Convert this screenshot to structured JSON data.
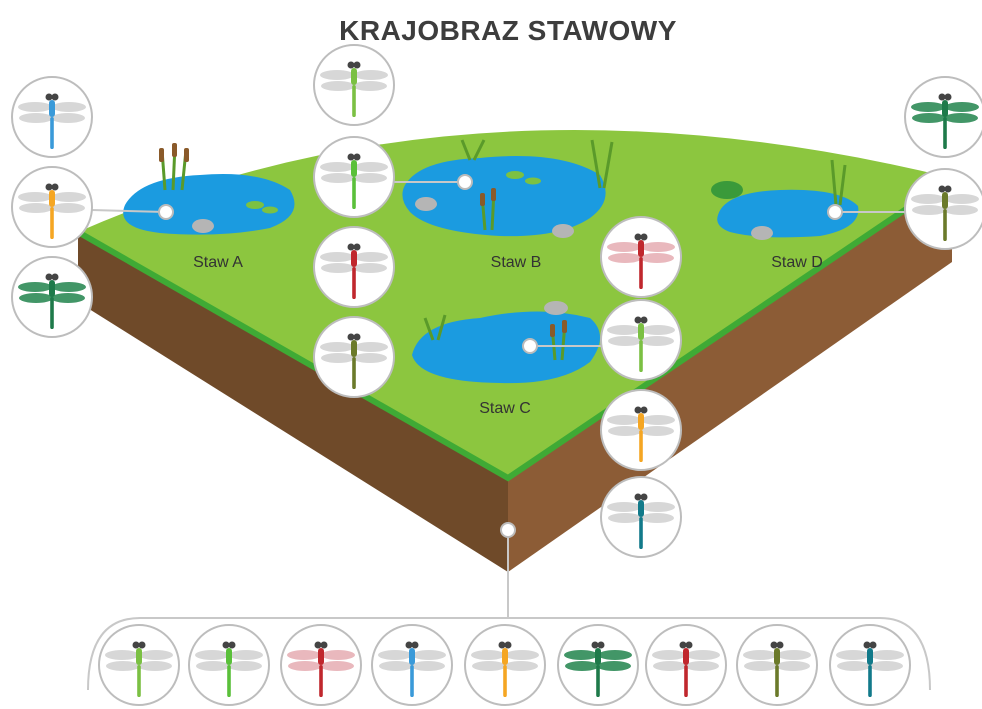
{
  "title": "KRAJOBRAZ STAWOWY",
  "ponds": [
    {
      "label": "Staw A"
    },
    {
      "label": "Staw B"
    },
    {
      "label": "Staw C"
    },
    {
      "label": "Staw D"
    }
  ]
}
